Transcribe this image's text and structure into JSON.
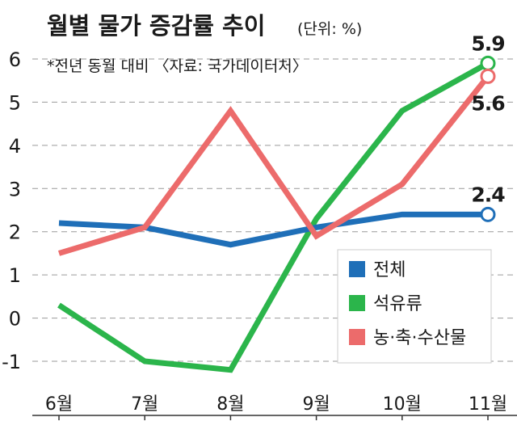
{
  "chart_data": {
    "type": "line",
    "title": "월별 물가 증감률 추이",
    "unit": "(단위: %)",
    "subtitle": "*전년 동월 대비 〈자료: 국가데이터처〉",
    "categories": [
      "6월",
      "7월",
      "8월",
      "9월",
      "10월",
      "11월"
    ],
    "ylim": [
      -1.5,
      6.3
    ],
    "yticks": [
      "-1",
      "0",
      "1",
      "2",
      "3",
      "4",
      "5",
      "6"
    ],
    "grid": true,
    "legend_position": "lower-right",
    "series": [
      {
        "name": "전체",
        "color": "#1f6fb8",
        "values": [
          2.2,
          2.1,
          1.7,
          2.1,
          2.4,
          2.4
        ]
      },
      {
        "name": "석유류",
        "color": "#2bb54b",
        "values": [
          0.3,
          -1.0,
          -1.2,
          2.3,
          4.8,
          5.9
        ]
      },
      {
        "name": "농·축·수산물",
        "color": "#ec6b6b",
        "values": [
          1.5,
          2.1,
          4.8,
          1.9,
          3.1,
          5.6
        ]
      }
    ],
    "annotations": [
      {
        "series": "석유류",
        "category": "11월",
        "text": "5.9"
      },
      {
        "series": "농·축·수산물",
        "category": "11월",
        "text": "5.6"
      },
      {
        "series": "전체",
        "category": "11월",
        "text": "2.4"
      }
    ]
  }
}
